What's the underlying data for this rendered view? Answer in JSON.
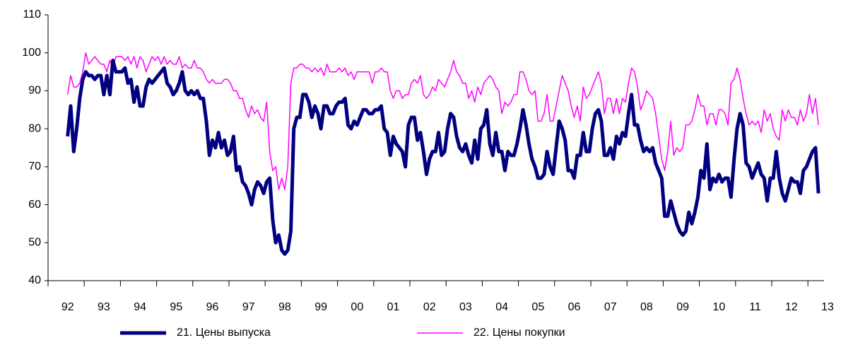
{
  "chart_data": {
    "type": "line",
    "categories": [
      "92",
      null,
      null,
      null,
      null,
      null,
      null,
      null,
      null,
      null,
      null,
      null,
      "93",
      null,
      null,
      null,
      null,
      null,
      null,
      null,
      null,
      null,
      null,
      null,
      "94",
      null,
      null,
      null,
      null,
      null,
      null,
      null,
      null,
      null,
      null,
      null,
      "95",
      null,
      null,
      null,
      null,
      null,
      null,
      null,
      null,
      null,
      null,
      null,
      "96",
      null,
      null,
      null,
      null,
      null,
      null,
      null,
      null,
      null,
      null,
      null,
      "97",
      null,
      null,
      null,
      null,
      null,
      null,
      null,
      null,
      null,
      null,
      null,
      "98",
      null,
      null,
      null,
      null,
      null,
      null,
      null,
      null,
      null,
      null,
      null,
      "99",
      null,
      null,
      null,
      null,
      null,
      null,
      null,
      null,
      null,
      null,
      null,
      "00",
      null,
      null,
      null,
      null,
      null,
      null,
      null,
      null,
      null,
      null,
      null,
      "01",
      null,
      null,
      null,
      null,
      null,
      null,
      null,
      null,
      null,
      null,
      null,
      "02",
      null,
      null,
      null,
      null,
      null,
      null,
      null,
      null,
      null,
      null,
      null,
      "03",
      null,
      null,
      null,
      null,
      null,
      null,
      null,
      null,
      null,
      null,
      null,
      "04",
      null,
      null,
      null,
      null,
      null,
      null,
      null,
      null,
      null,
      null,
      null,
      "05",
      null,
      null,
      null,
      null,
      null,
      null,
      null,
      null,
      null,
      null,
      null,
      "06",
      null,
      null,
      null,
      null,
      null,
      null,
      null,
      null,
      null,
      null,
      null,
      "07",
      null,
      null,
      null,
      null,
      null,
      null,
      null,
      null,
      null,
      null,
      null,
      "08",
      null,
      null,
      null,
      null,
      null,
      null,
      null,
      null,
      null,
      null,
      null,
      "09",
      null,
      null,
      null,
      null,
      null,
      null,
      null,
      null,
      null,
      null,
      null,
      "10",
      null,
      null,
      null,
      null,
      null,
      null,
      null,
      null,
      null,
      null,
      null,
      "11",
      null,
      null,
      null,
      null,
      null,
      null,
      null,
      null,
      null,
      null,
      null,
      "12",
      null,
      null,
      null,
      null,
      null,
      null,
      null,
      null,
      null,
      null,
      null,
      "13"
    ],
    "series": [
      {
        "name": "21. Цены выпуска",
        "color": "#000080",
        "values": [
          78,
          86,
          74,
          80,
          88,
          93,
          95,
          94,
          94,
          93,
          94,
          94,
          89,
          94,
          89,
          98,
          95,
          95,
          95,
          96,
          92,
          93,
          87,
          91,
          86,
          86,
          91,
          93,
          92,
          93,
          94,
          95,
          96,
          92,
          91,
          89,
          90,
          92,
          95,
          90,
          89,
          90,
          89,
          90,
          88,
          88,
          82,
          73,
          77,
          75,
          79,
          75,
          77,
          73,
          74,
          78,
          69,
          70,
          66,
          65,
          63,
          60,
          64,
          66,
          65,
          63,
          66,
          67,
          56,
          50,
          52,
          48,
          47,
          48,
          53,
          80,
          83,
          83,
          89,
          89,
          87,
          83,
          86,
          84,
          80,
          86,
          86,
          84,
          84,
          86,
          87,
          87,
          88,
          81,
          80,
          82,
          81,
          83,
          85,
          85,
          84,
          84,
          85,
          85,
          86,
          80,
          79,
          73,
          78,
          76,
          75,
          74,
          70,
          81,
          83,
          83,
          77,
          79,
          74,
          68,
          72,
          74,
          74,
          79,
          73,
          74,
          80,
          84,
          83,
          78,
          75,
          74,
          76,
          73,
          71,
          77,
          72,
          80,
          81,
          85,
          76,
          73,
          79,
          74,
          74,
          69,
          74,
          73,
          73,
          76,
          80,
          85,
          81,
          76,
          72,
          70,
          67,
          67,
          68,
          74,
          70,
          68,
          75,
          82,
          80,
          77,
          69,
          69,
          67,
          73,
          73,
          79,
          74,
          74,
          80,
          84,
          85,
          82,
          73,
          73,
          75,
          72,
          78,
          76,
          79,
          78,
          84,
          89,
          81,
          81,
          77,
          74,
          75,
          74,
          75,
          71,
          69,
          67,
          57,
          57,
          61,
          58,
          55,
          53,
          52,
          53,
          58,
          55,
          58,
          62,
          69,
          67,
          76,
          64,
          67,
          66,
          68,
          66,
          67,
          67,
          62,
          72,
          80,
          84,
          81,
          71,
          70,
          67,
          69,
          71,
          68,
          67,
          61,
          67,
          67,
          74,
          67,
          63,
          61,
          64,
          67,
          66,
          66,
          63,
          69,
          70,
          72,
          74,
          75,
          63,
          null,
          null,
          null
        ]
      },
      {
        "name": "22. Цены покупки",
        "color": "#ff00ff",
        "values": [
          89,
          94,
          91,
          91,
          92,
          95,
          100,
          97,
          98,
          99,
          98,
          97,
          97,
          95,
          98,
          96,
          99,
          99,
          99,
          98,
          99,
          97,
          99,
          96,
          99,
          98,
          95,
          97,
          99,
          98,
          99,
          97,
          99,
          97,
          98,
          97,
          97,
          99,
          96,
          97,
          96,
          96,
          98,
          96,
          96,
          95,
          93,
          92,
          93,
          92,
          92,
          92,
          93,
          93,
          92,
          90,
          90,
          88,
          88,
          85,
          83,
          86,
          84,
          85,
          83,
          82,
          87,
          74,
          69,
          70,
          64,
          67,
          64,
          70,
          92,
          96,
          96,
          97,
          97,
          96,
          96,
          95,
          96,
          95,
          96,
          94,
          97,
          95,
          95,
          95,
          96,
          95,
          96,
          94,
          95,
          93,
          95,
          95,
          95,
          95,
          95,
          92,
          95,
          95,
          96,
          95,
          95,
          90,
          88,
          90,
          90,
          88,
          89,
          89,
          92,
          93,
          92,
          94,
          89,
          88,
          89,
          91,
          90,
          93,
          92,
          91,
          93,
          95,
          98,
          95,
          94,
          92,
          92,
          88,
          90,
          87,
          91,
          89,
          92,
          93,
          94,
          93,
          91,
          90,
          84,
          87,
          86,
          87,
          89,
          89,
          95,
          95,
          93,
          90,
          89,
          90,
          82,
          82,
          84,
          89,
          82,
          82,
          86,
          90,
          94,
          92,
          90,
          86,
          83,
          86,
          82,
          91,
          88,
          89,
          91,
          93,
          95,
          92,
          84,
          88,
          88,
          84,
          88,
          84,
          88,
          87,
          92,
          96,
          95,
          91,
          85,
          87,
          90,
          89,
          88,
          84,
          78,
          72,
          69,
          74,
          82,
          73,
          75,
          74,
          75,
          81,
          81,
          82,
          85,
          89,
          86,
          86,
          81,
          84,
          84,
          81,
          85,
          85,
          84,
          81,
          92,
          93,
          96,
          93,
          88,
          84,
          81,
          82,
          81,
          82,
          79,
          85,
          82,
          84,
          80,
          78,
          77,
          85,
          82,
          85,
          83,
          83,
          81,
          85,
          82,
          84,
          89,
          84,
          88,
          81,
          null,
          null,
          null
        ]
      }
    ],
    "ylim": [
      40,
      110
    ],
    "yticks": [
      40,
      50,
      60,
      70,
      80,
      90,
      100,
      110
    ],
    "grid": false,
    "legend": "bottom"
  }
}
